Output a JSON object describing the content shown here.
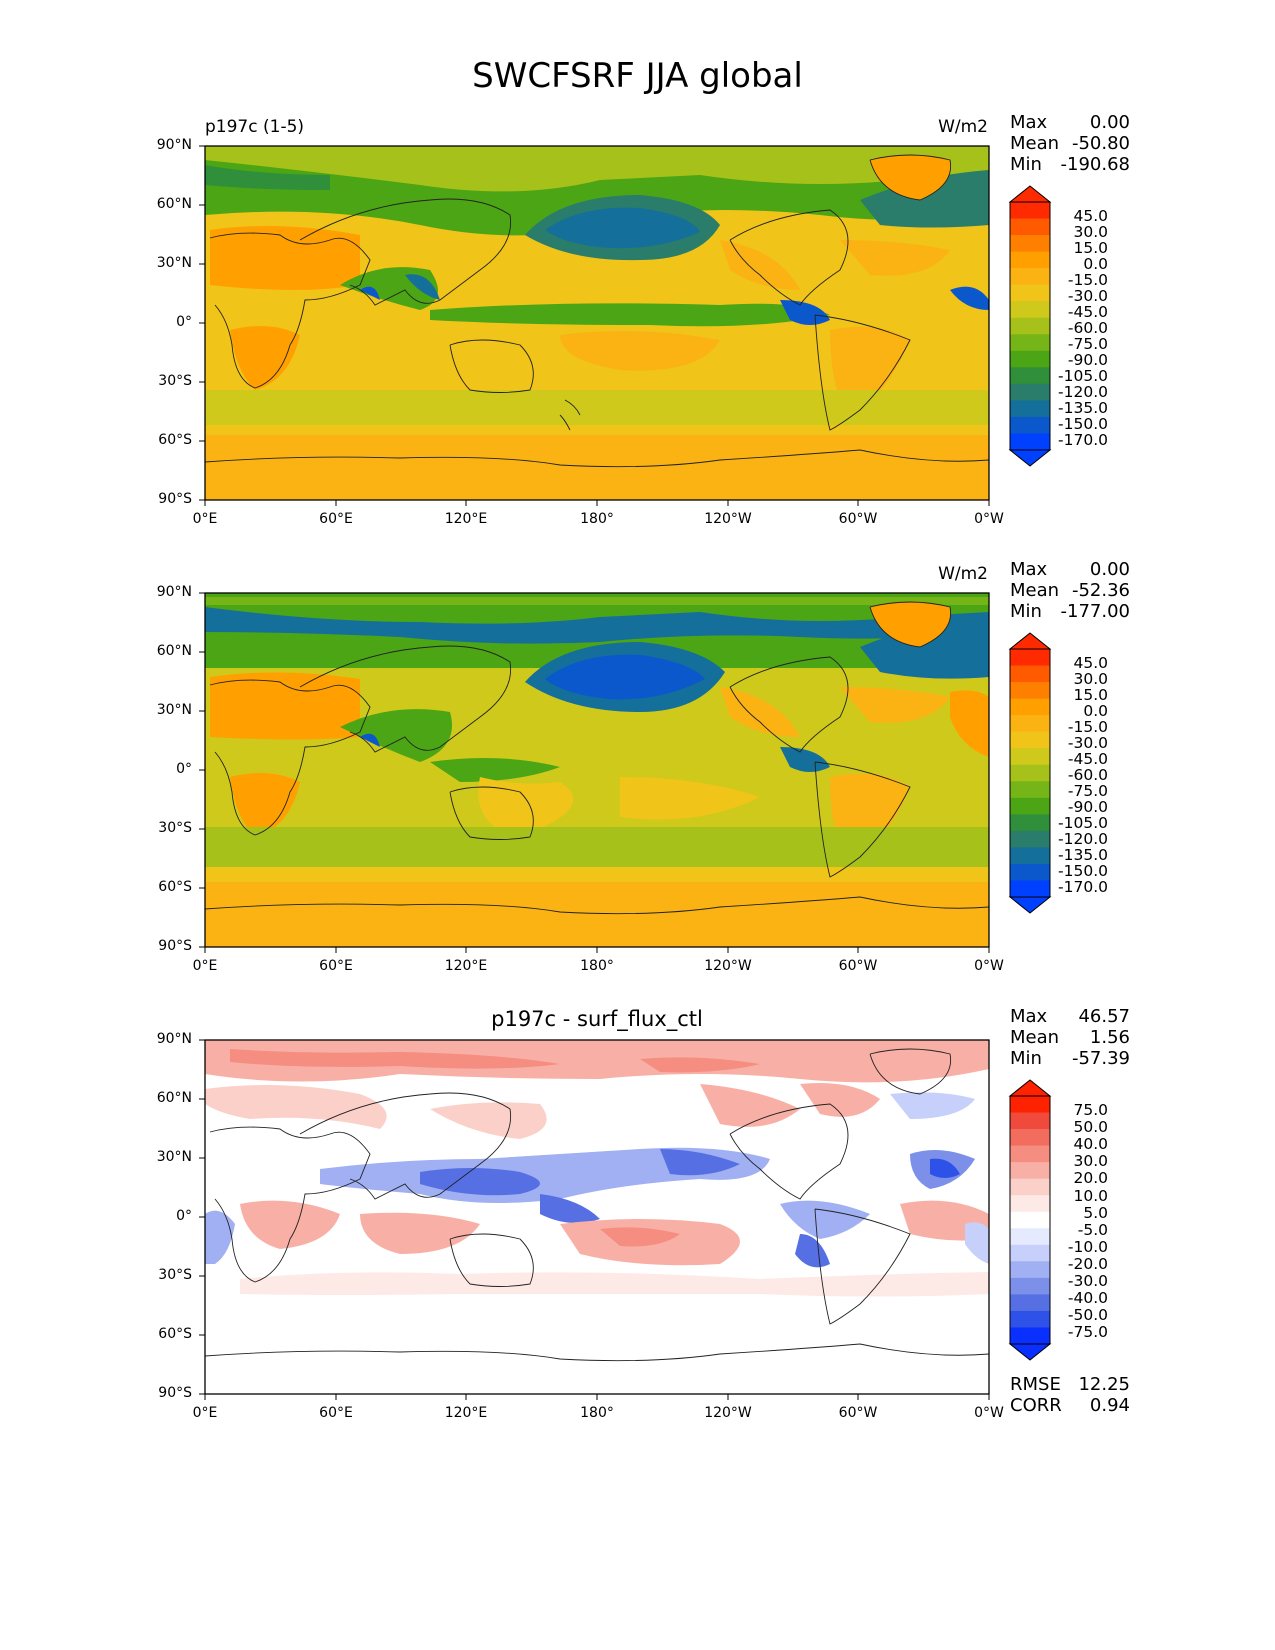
{
  "title": "SWCFSRF JJA global",
  "axes": {
    "lat_ticks": [
      "90°N",
      "60°N",
      "30°N",
      "0°",
      "30°S",
      "60°S",
      "90°S"
    ],
    "lon_ticks": [
      "0°E",
      "60°E",
      "120°E",
      "180°",
      "120°W",
      "60°W",
      "0°W"
    ]
  },
  "panels": [
    {
      "label_left": "p197c (1-5)",
      "units": "W/m2",
      "stats": {
        "max_label": "Max",
        "max": "0.00",
        "mean_label": "Mean",
        "mean": "-50.80",
        "min_label": "Min",
        "min": "-190.68"
      },
      "colorbar_ticks": [
        "45.0",
        "30.0",
        "15.0",
        "0.0",
        "-15.0",
        "-30.0",
        "-45.0",
        "-60.0",
        "-75.0",
        "-90.0",
        "-105.0",
        "-120.0",
        "-135.0",
        "-150.0",
        "-170.0"
      ],
      "colorbar_colors": [
        "#ff2a00",
        "#ff5a00",
        "#ff8000",
        "#ffa000",
        "#fbb314",
        "#f0c419",
        "#cfc91c",
        "#a6c21a",
        "#76b517",
        "#4ca514",
        "#2f8f3a",
        "#2a7d6a",
        "#146f9a",
        "#0a58cc",
        "#0040ff"
      ]
    },
    {
      "label_left": "",
      "units": "W/m2",
      "stats": {
        "max_label": "Max",
        "max": "0.00",
        "mean_label": "Mean",
        "mean": "-52.36",
        "min_label": "Min",
        "min": "-177.00"
      },
      "colorbar_ticks": [
        "45.0",
        "30.0",
        "15.0",
        "0.0",
        "-15.0",
        "-30.0",
        "-45.0",
        "-60.0",
        "-75.0",
        "-90.0",
        "-105.0",
        "-120.0",
        "-135.0",
        "-150.0",
        "-170.0"
      ],
      "colorbar_colors": [
        "#ff2a00",
        "#ff5a00",
        "#ff8000",
        "#ffa000",
        "#fbb314",
        "#f0c419",
        "#cfc91c",
        "#a6c21a",
        "#76b517",
        "#4ca514",
        "#2f8f3a",
        "#2a7d6a",
        "#146f9a",
        "#0a58cc",
        "#0040ff"
      ]
    },
    {
      "title": "p197c - surf_flux_ctl",
      "stats": {
        "max_label": "Max",
        "max": "46.57",
        "mean_label": "Mean",
        "mean": "1.56",
        "min_label": "Min",
        "min": "-57.39"
      },
      "colorbar_ticks": [
        "75.0",
        "50.0",
        "40.0",
        "30.0",
        "20.0",
        "10.0",
        "5.0",
        "-5.0",
        "-10.0",
        "-20.0",
        "-30.0",
        "-40.0",
        "-50.0",
        "-75.0"
      ],
      "colorbar_colors": [
        "#ff2200",
        "#ef4a3c",
        "#f26d5e",
        "#f58d80",
        "#f8b0a6",
        "#fbd0c9",
        "#fde9e6",
        "#ffffff",
        "#e6eaff",
        "#c6d0fa",
        "#a0b0f2",
        "#7c90ea",
        "#5670e4",
        "#2e52e8",
        "#0a30ff"
      ],
      "rmse_label": "RMSE",
      "rmse": "12.25",
      "corr_label": "CORR",
      "corr": "0.94"
    }
  ],
  "map_colors": {
    "p1_base": "#f0c419",
    "p1_ocean_south": "#fbb314",
    "p1_land_dry": "#ffa000",
    "p1_green": "#76b517",
    "p1_darkgreen": "#4ca514",
    "p1_teal": "#146f9a",
    "p1_blue": "#0a58cc",
    "diff_red_light": "#f8b0a6",
    "diff_red": "#f58d80",
    "diff_blue_light": "#a0b0f2",
    "diff_blue": "#5670e4"
  }
}
